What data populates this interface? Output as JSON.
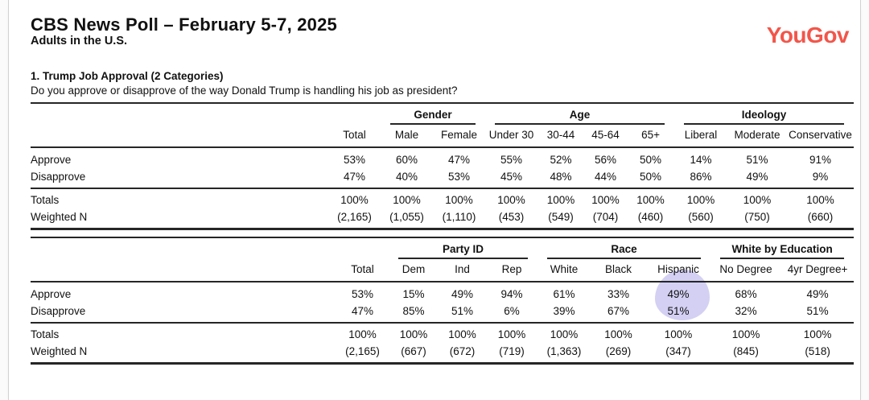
{
  "header": {
    "title": "CBS News Poll – February 5-7, 2025",
    "subtitle": "Adults in the U.S.",
    "logo_text": "YouGov",
    "logo_color": "#f2564a"
  },
  "question": {
    "number_title": "1. Trump Job Approval (2 Categories)",
    "text": "Do you approve or disapprove of the way Donald Trump is handling his job as president?"
  },
  "tables": [
    {
      "groups": [
        {
          "label": "Gender",
          "cols": 2
        },
        {
          "label": "Age",
          "cols": 4
        },
        {
          "label": "Ideology",
          "cols": 3
        }
      ],
      "columns": [
        "Total",
        "Male",
        "Female",
        "Under 30",
        "30-44",
        "45-64",
        "65+",
        "Liberal",
        "Moderate",
        "Conservative"
      ],
      "rows": [
        {
          "label": "Approve",
          "values": [
            "53%",
            "60%",
            "47%",
            "55%",
            "52%",
            "56%",
            "50%",
            "14%",
            "51%",
            "91%"
          ]
        },
        {
          "label": "Disapprove",
          "values": [
            "47%",
            "40%",
            "53%",
            "45%",
            "48%",
            "44%",
            "50%",
            "86%",
            "49%",
            "9%"
          ]
        }
      ],
      "footer_rows": [
        {
          "label": "Totals",
          "values": [
            "100%",
            "100%",
            "100%",
            "100%",
            "100%",
            "100%",
            "100%",
            "100%",
            "100%",
            "100%"
          ]
        },
        {
          "label": "Weighted N",
          "values": [
            "(2,165)",
            "(1,055)",
            "(1,110)",
            "(453)",
            "(549)",
            "(704)",
            "(460)",
            "(560)",
            "(750)",
            "(660)"
          ]
        }
      ]
    },
    {
      "groups": [
        {
          "label": "Party ID",
          "cols": 3
        },
        {
          "label": "Race",
          "cols": 3
        },
        {
          "label": "White by Education",
          "cols": 2
        }
      ],
      "columns": [
        "Total",
        "Dem",
        "Ind",
        "Rep",
        "White",
        "Black",
        "Hispanic",
        "No Degree",
        "4yr Degree+"
      ],
      "rows": [
        {
          "label": "Approve",
          "values": [
            "53%",
            "15%",
            "49%",
            "94%",
            "61%",
            "33%",
            "49%",
            "68%",
            "49%"
          ]
        },
        {
          "label": "Disapprove",
          "values": [
            "47%",
            "85%",
            "51%",
            "6%",
            "39%",
            "67%",
            "51%",
            "32%",
            "51%"
          ]
        }
      ],
      "footer_rows": [
        {
          "label": "Totals",
          "values": [
            "100%",
            "100%",
            "100%",
            "100%",
            "100%",
            "100%",
            "100%",
            "100%",
            "100%"
          ]
        },
        {
          "label": "Weighted N",
          "values": [
            "(2,165)",
            "(667)",
            "(672)",
            "(719)",
            "(1,363)",
            "(269)",
            "(347)",
            "(845)",
            "(518)"
          ]
        }
      ]
    }
  ],
  "highlight": {
    "column": "Hispanic",
    "covers_values": [
      "49%",
      "51%"
    ],
    "color": "#c8c4f0"
  }
}
